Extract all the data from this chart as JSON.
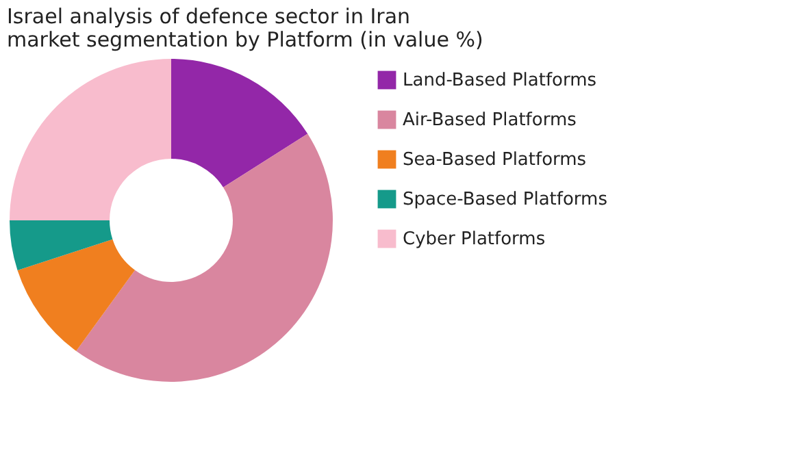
{
  "chart_data": {
    "type": "donut",
    "title": [
      "Israel analysis of defence sector in Iran",
      "market segmentation by Platform (in value %)"
    ],
    "categories": [
      "Land-Based Platforms",
      "Air-Based Platforms",
      "Sea-Based Platforms",
      "Space-Based Platforms",
      "Cyber Platforms"
    ],
    "values": [
      16,
      44,
      10,
      5,
      25
    ],
    "colors": [
      "#9327a8",
      "#d9869f",
      "#f07f1f",
      "#159a8a",
      "#f8bccd"
    ],
    "legend": "right"
  }
}
